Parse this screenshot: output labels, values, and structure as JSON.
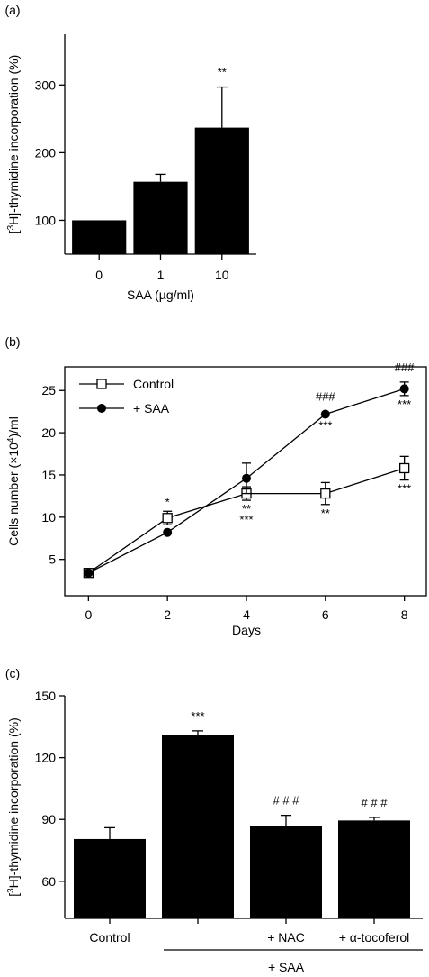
{
  "chart_data": [
    {
      "panel_label": "(a)",
      "type": "bar",
      "xlabel": "SAA (µg/ml)",
      "ylabel_pre": "[",
      "ylabel_sup": "3",
      "ylabel_post": "H]-thymidine incorporation (%)",
      "categories": [
        "0",
        "1",
        "10"
      ],
      "values": [
        100,
        157,
        237
      ],
      "errors": [
        0,
        11,
        60
      ],
      "annotations": [
        "",
        "",
        "**"
      ],
      "ylim": [
        50,
        375
      ],
      "yticks": [
        100,
        200,
        300
      ],
      "color": "#000000"
    },
    {
      "panel_label": "(b)",
      "type": "line",
      "xlabel": "Days",
      "ylabel_pre": "Cells number (×10",
      "ylabel_sup": "4",
      "ylabel_post": ")/ml",
      "x": [
        0,
        2,
        4,
        6,
        8
      ],
      "xlim": [
        -0.6,
        8.6
      ],
      "ylim": [
        0.7,
        27.8
      ],
      "xticks": [
        0,
        2,
        4,
        6,
        8
      ],
      "yticks": [
        5,
        10,
        15,
        20,
        25
      ],
      "legend_position": "top-left",
      "series": [
        {
          "name": "Control",
          "marker": "open-square",
          "values": [
            3.4,
            9.9,
            12.8,
            12.8,
            15.8
          ],
          "errors": [
            0.3,
            0.8,
            0.8,
            1.3,
            1.4
          ],
          "annotations": [
            "",
            "*",
            "**",
            "**",
            "***"
          ]
        },
        {
          "name": "+ SAA",
          "marker": "filled-circle",
          "values": [
            3.4,
            8.2,
            14.6,
            22.2,
            25.2
          ],
          "errors": [
            0.3,
            0.3,
            1.8,
            0.3,
            0.8
          ],
          "annotations": [
            "",
            "",
            "***",
            "***",
            "***"
          ],
          "annotations_top": [
            "",
            "",
            "",
            "###",
            "###"
          ]
        }
      ]
    },
    {
      "panel_label": "(c)",
      "type": "bar",
      "ylabel_pre": "[",
      "ylabel_sup": "3",
      "ylabel_post": "H]-thymidine incorporation (%)",
      "categories": [
        "Control",
        "",
        "+ NAC",
        "+ α-tocoferol"
      ],
      "group_label": "+ SAA",
      "values": [
        80.5,
        131,
        87,
        89.5
      ],
      "errors": [
        5.5,
        2,
        5,
        1.5
      ],
      "annotations": [
        "",
        "***",
        "# # #",
        "# # #"
      ],
      "ylim": [
        42,
        150
      ],
      "yticks": [
        60,
        90,
        120,
        150
      ],
      "color": "#000000"
    }
  ]
}
